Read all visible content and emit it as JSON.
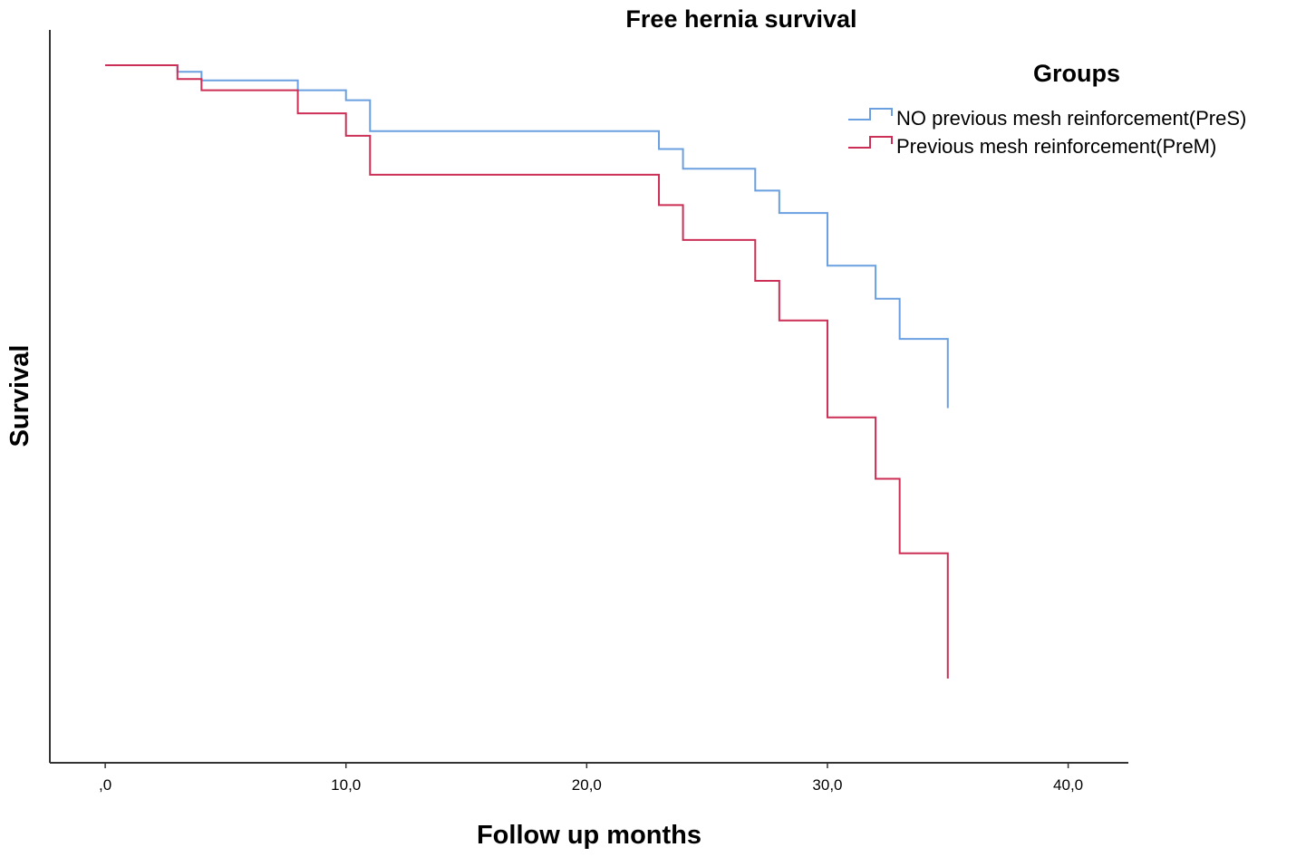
{
  "chart_data": {
    "type": "line",
    "subtype": "kaplan-meier step",
    "title": "Free hernia survival",
    "xlabel": "Follow up months",
    "ylabel": "Survival",
    "xlim": [
      -2.3,
      42.5
    ],
    "xticks": [
      0,
      10,
      20,
      30,
      40
    ],
    "xtick_labels": [
      ",0",
      "10,0",
      "20,0",
      "30,0",
      "40,0"
    ],
    "ylim": [
      0.0,
      1.0
    ],
    "yticks_shown": false,
    "grid": false,
    "legend": {
      "title": "Groups",
      "position": "top-right"
    },
    "series": [
      {
        "name": "NO previous mesh reinforcement(PreS)",
        "color": "#6a9fe0",
        "x": [
          0,
          3,
          4,
          8,
          10,
          11,
          23,
          24,
          27,
          28,
          30,
          32,
          33,
          35
        ],
        "y": [
          1.0,
          0.99,
          0.977,
          0.962,
          0.947,
          0.9,
          0.873,
          0.843,
          0.81,
          0.776,
          0.696,
          0.646,
          0.585,
          0.48
        ]
      },
      {
        "name": "Previous mesh reinforcement(PreM)",
        "color": "#cc2f55",
        "x": [
          0,
          3,
          4,
          8,
          10,
          11,
          23,
          24,
          27,
          28,
          30,
          32,
          33,
          35
        ],
        "y": [
          1.0,
          0.979,
          0.962,
          0.927,
          0.893,
          0.834,
          0.788,
          0.735,
          0.673,
          0.613,
          0.466,
          0.373,
          0.26,
          0.07
        ]
      }
    ]
  }
}
